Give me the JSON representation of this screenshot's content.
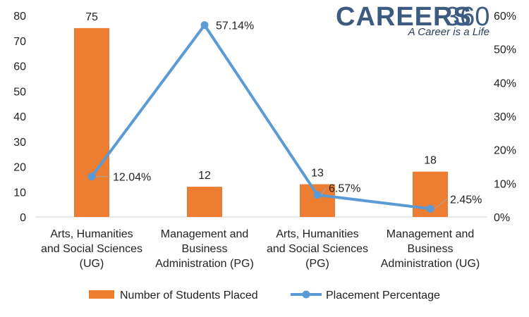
{
  "logo": {
    "brand": "CAREERS",
    "number": "360",
    "tagline": "A Career is a Life"
  },
  "colors": {
    "bar": "#ED7D31",
    "line": "#5B9BD5",
    "text": "#222222"
  },
  "chart_data": {
    "type": "bar",
    "categories": [
      [
        "Arts, Humanities",
        "and Social Sciences",
        "(UG)"
      ],
      [
        "Management and",
        "Business",
        "Administration (PG)"
      ],
      [
        "Arts, Humanities",
        "and Social Sciences",
        "(PG)"
      ],
      [
        "Management and",
        "Business",
        "Administration (UG)"
      ]
    ],
    "series": [
      {
        "name": "Number of Students Placed",
        "type": "bar",
        "axis": "left",
        "values": [
          75,
          12,
          13,
          18
        ],
        "labels": [
          "75",
          "12",
          "13",
          "18"
        ]
      },
      {
        "name": "Placement Percentage",
        "type": "line",
        "axis": "right",
        "values": [
          12.04,
          57.14,
          6.57,
          2.45
        ],
        "labels": [
          "12.04%",
          "57.14%",
          "6.57%",
          "2.45%"
        ]
      }
    ],
    "y_left": {
      "range": [
        0,
        80
      ],
      "ticks": [
        "0",
        "10",
        "20",
        "30",
        "40",
        "50",
        "60",
        "70",
        "80"
      ]
    },
    "y_right": {
      "range": [
        0,
        60
      ],
      "ticks": [
        "0%",
        "10%",
        "20%",
        "30%",
        "40%",
        "50%",
        "60%"
      ]
    },
    "grid": false,
    "legend": "bottom"
  }
}
